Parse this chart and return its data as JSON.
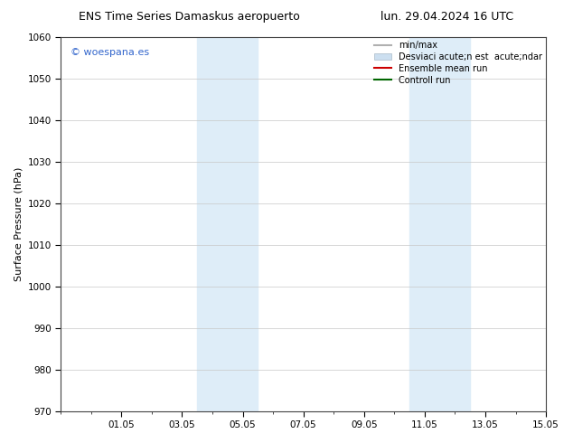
{
  "title_left": "ENS Time Series Damaskus aeropuerto",
  "title_right": "lun. 29.04.2024 16 UTC",
  "ylabel": "Surface Pressure (hPa)",
  "ylim": [
    970,
    1060
  ],
  "yticks": [
    970,
    980,
    990,
    1000,
    1010,
    1020,
    1030,
    1040,
    1050,
    1060
  ],
  "xtick_labels": [
    "01.05",
    "03.05",
    "05.05",
    "07.05",
    "09.05",
    "11.05",
    "13.05",
    "15.05"
  ],
  "xtick_positions": [
    2,
    4,
    6,
    8,
    10,
    12,
    14,
    16
  ],
  "xlim": [
    0,
    16
  ],
  "shaded_regions": [
    {
      "xmin": 4.5,
      "xmax": 5.5
    },
    {
      "xmin": 5.5,
      "xmax": 6.5
    },
    {
      "xmin": 11.5,
      "xmax": 12.5
    },
    {
      "xmin": 12.5,
      "xmax": 13.5
    }
  ],
  "shade_color": "#deedf8",
  "watermark_text": "© woespana.es",
  "watermark_color": "#3366cc",
  "legend_label_1": "min/max",
  "legend_label_2": "Desviaci acute;n est  acute;ndar",
  "legend_label_3": "Ensemble mean run",
  "legend_label_4": "Controll run",
  "legend_color_1": "#b0b0b0",
  "legend_color_2": "#ccdff0",
  "legend_color_3": "#cc0000",
  "legend_color_4": "#006600",
  "background_color": "#ffffff",
  "grid_color": "#c8c8c8",
  "title_fontsize": 9,
  "tick_fontsize": 7.5,
  "ylabel_fontsize": 8,
  "watermark_fontsize": 8,
  "legend_fontsize": 7
}
